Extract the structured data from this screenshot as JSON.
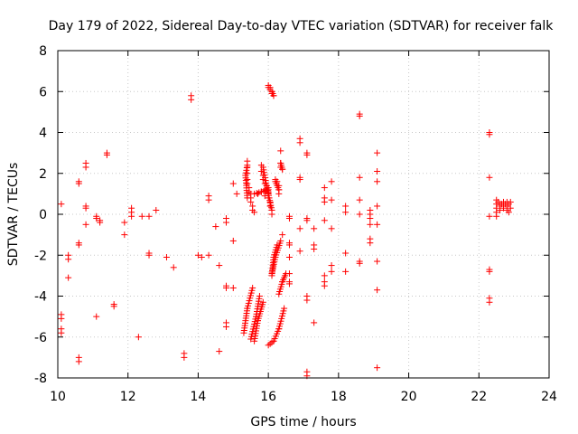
{
  "chart_data": {
    "type": "scatter",
    "title": "Day 179 of 2022, Sidereal Day-to-day VTEC variation (SDTVAR) for receiver falk",
    "xlabel": "GPS time / hours",
    "ylabel": "SDTVAR / TECUs",
    "xlim": [
      10,
      24
    ],
    "ylim": [
      -8,
      8
    ],
    "xticks": [
      10,
      12,
      14,
      16,
      18,
      20,
      22,
      24
    ],
    "yticks": [
      -8,
      -6,
      -4,
      -2,
      0,
      2,
      4,
      6,
      8
    ],
    "marker": "plus",
    "color": "#ff0000",
    "grid": true,
    "series": [
      {
        "name": "SDTVAR",
        "points": [
          [
            10.1,
            0.5
          ],
          [
            10.1,
            -4.9
          ],
          [
            10.1,
            -5.1
          ],
          [
            10.1,
            -5.6
          ],
          [
            10.1,
            -5.8
          ],
          [
            10.3,
            -2.0
          ],
          [
            10.3,
            -2.2
          ],
          [
            10.3,
            -3.1
          ],
          [
            10.6,
            1.6
          ],
          [
            10.6,
            1.5
          ],
          [
            10.6,
            -1.4
          ],
          [
            10.6,
            -1.5
          ],
          [
            10.6,
            -7.0
          ],
          [
            10.6,
            -7.2
          ],
          [
            10.8,
            2.5
          ],
          [
            10.8,
            2.3
          ],
          [
            10.8,
            0.4
          ],
          [
            10.8,
            0.3
          ],
          [
            10.8,
            -0.5
          ],
          [
            11.1,
            -0.1
          ],
          [
            11.1,
            -0.2
          ],
          [
            11.2,
            -0.3
          ],
          [
            11.2,
            -0.4
          ],
          [
            11.1,
            -5.0
          ],
          [
            11.4,
            3.0
          ],
          [
            11.4,
            2.9
          ],
          [
            11.6,
            -4.4
          ],
          [
            11.6,
            -4.5
          ],
          [
            11.9,
            -0.4
          ],
          [
            11.9,
            -1.0
          ],
          [
            12.1,
            0.3
          ],
          [
            12.1,
            0.1
          ],
          [
            12.1,
            -0.1
          ],
          [
            12.3,
            -6.0
          ],
          [
            12.4,
            -0.1
          ],
          [
            12.6,
            -0.1
          ],
          [
            12.6,
            -1.9
          ],
          [
            12.6,
            -2.0
          ],
          [
            12.8,
            0.2
          ],
          [
            13.1,
            -2.1
          ],
          [
            13.3,
            -2.6
          ],
          [
            13.6,
            -6.8
          ],
          [
            13.6,
            -7.0
          ],
          [
            13.8,
            5.8
          ],
          [
            13.8,
            5.6
          ],
          [
            14.0,
            -2.0
          ],
          [
            14.1,
            -2.1
          ],
          [
            14.3,
            0.9
          ],
          [
            14.3,
            0.7
          ],
          [
            14.3,
            -2.0
          ],
          [
            14.5,
            -0.6
          ],
          [
            14.6,
            -2.5
          ],
          [
            14.6,
            -6.7
          ],
          [
            14.8,
            -0.2
          ],
          [
            14.8,
            -0.4
          ],
          [
            14.8,
            -3.5
          ],
          [
            14.8,
            -3.6
          ],
          [
            14.8,
            -5.3
          ],
          [
            14.8,
            -5.5
          ],
          [
            15.0,
            1.5
          ],
          [
            15.0,
            -1.3
          ],
          [
            15.0,
            -3.6
          ],
          [
            15.1,
            1.0
          ],
          [
            15.4,
            2.6
          ],
          [
            15.4,
            2.3
          ],
          [
            15.4,
            2.0
          ],
          [
            15.4,
            1.7
          ],
          [
            15.4,
            1.5
          ],
          [
            15.45,
            1.3
          ],
          [
            15.45,
            1.1
          ],
          [
            15.5,
            1.0
          ],
          [
            15.5,
            0.8
          ],
          [
            15.5,
            0.6
          ],
          [
            15.55,
            0.4
          ],
          [
            15.55,
            0.2
          ],
          [
            15.6,
            0.1
          ],
          [
            15.7,
            1.0
          ],
          [
            15.8,
            1.1
          ],
          [
            15.9,
            1.2
          ],
          [
            16.0,
            1.3
          ],
          [
            16.0,
            1.1
          ],
          [
            15.9,
            0.9
          ],
          [
            15.8,
            2.4
          ],
          [
            15.8,
            2.1
          ],
          [
            15.85,
            1.9
          ],
          [
            15.85,
            1.7
          ],
          [
            15.9,
            1.5
          ],
          [
            15.95,
            1.2
          ],
          [
            16.0,
            1.0
          ],
          [
            16.0,
            0.8
          ],
          [
            16.05,
            0.6
          ],
          [
            16.05,
            0.4
          ],
          [
            16.1,
            0.2
          ],
          [
            16.1,
            0.0
          ],
          [
            16.0,
            6.3
          ],
          [
            16.05,
            6.2
          ],
          [
            16.05,
            6.1
          ],
          [
            16.1,
            6.0
          ],
          [
            16.1,
            5.9
          ],
          [
            16.15,
            5.8
          ],
          [
            16.2,
            1.7
          ],
          [
            16.25,
            1.6
          ],
          [
            16.3,
            1.4
          ],
          [
            16.3,
            1.2
          ],
          [
            16.35,
            3.1
          ],
          [
            16.35,
            2.5
          ],
          [
            16.35,
            2.3
          ],
          [
            16.4,
            2.2
          ],
          [
            16.3,
            1.0
          ],
          [
            16.4,
            -1.0
          ],
          [
            16.6,
            -0.1
          ],
          [
            16.6,
            -0.2
          ],
          [
            16.6,
            -1.4
          ],
          [
            16.6,
            -1.5
          ],
          [
            16.6,
            -2.1
          ],
          [
            16.6,
            -2.9
          ],
          [
            16.6,
            -3.3
          ],
          [
            16.6,
            -3.4
          ],
          [
            16.9,
            3.7
          ],
          [
            16.9,
            3.5
          ],
          [
            16.9,
            1.8
          ],
          [
            16.9,
            1.7
          ],
          [
            16.9,
            -0.7
          ],
          [
            16.9,
            -1.8
          ],
          [
            17.1,
            3.0
          ],
          [
            17.1,
            2.9
          ],
          [
            17.1,
            -0.2
          ],
          [
            17.1,
            -0.3
          ],
          [
            17.1,
            -4.0
          ],
          [
            17.1,
            -4.2
          ],
          [
            17.1,
            -7.7
          ],
          [
            17.1,
            -7.9
          ],
          [
            17.3,
            -0.7
          ],
          [
            17.3,
            -1.5
          ],
          [
            17.3,
            -1.7
          ],
          [
            17.3,
            -5.3
          ],
          [
            17.6,
            1.3
          ],
          [
            17.6,
            0.8
          ],
          [
            17.6,
            0.6
          ],
          [
            17.6,
            -0.3
          ],
          [
            17.6,
            -3.0
          ],
          [
            17.6,
            -3.3
          ],
          [
            17.6,
            -3.5
          ],
          [
            17.8,
            1.6
          ],
          [
            17.8,
            0.7
          ],
          [
            17.8,
            -0.7
          ],
          [
            17.8,
            -2.5
          ],
          [
            17.8,
            -2.8
          ],
          [
            18.2,
            0.4
          ],
          [
            18.2,
            0.1
          ],
          [
            18.2,
            -1.9
          ],
          [
            18.2,
            -2.8
          ],
          [
            18.6,
            4.9
          ],
          [
            18.6,
            4.8
          ],
          [
            18.6,
            1.8
          ],
          [
            18.6,
            0.7
          ],
          [
            18.6,
            0.0
          ],
          [
            18.6,
            -2.3
          ],
          [
            18.6,
            -2.4
          ],
          [
            18.9,
            0.2
          ],
          [
            18.9,
            0.0
          ],
          [
            18.9,
            -0.2
          ],
          [
            18.9,
            -0.5
          ],
          [
            18.9,
            -1.2
          ],
          [
            18.9,
            -1.4
          ],
          [
            19.1,
            3.0
          ],
          [
            19.1,
            2.1
          ],
          [
            19.1,
            1.6
          ],
          [
            19.1,
            0.4
          ],
          [
            19.1,
            -0.5
          ],
          [
            19.1,
            -2.3
          ],
          [
            19.1,
            -3.7
          ],
          [
            19.1,
            -7.5
          ],
          [
            22.3,
            4.0
          ],
          [
            22.3,
            3.9
          ],
          [
            22.3,
            1.8
          ],
          [
            22.3,
            -0.1
          ],
          [
            22.3,
            -2.7
          ],
          [
            22.3,
            -2.8
          ],
          [
            22.3,
            -4.1
          ],
          [
            22.3,
            -4.3
          ],
          [
            22.5,
            0.7
          ],
          [
            22.5,
            0.5
          ],
          [
            22.5,
            0.3
          ],
          [
            22.5,
            0.1
          ],
          [
            22.5,
            -0.1
          ],
          [
            22.55,
            0.6
          ],
          [
            22.6,
            0.5
          ],
          [
            22.6,
            0.4
          ],
          [
            22.6,
            0.2
          ],
          [
            22.65,
            0.5
          ],
          [
            22.7,
            0.6
          ],
          [
            22.7,
            0.4
          ],
          [
            22.7,
            0.3
          ],
          [
            22.75,
            0.5
          ],
          [
            22.8,
            0.6
          ],
          [
            22.8,
            0.4
          ],
          [
            22.8,
            0.2
          ],
          [
            22.85,
            0.5
          ],
          [
            22.85,
            0.1
          ],
          [
            22.9,
            0.6
          ],
          [
            22.9,
            0.3
          ]
        ],
        "trails": [
          [
            [
              15.3,
              -5.8
            ],
            [
              15.4,
              -4.6
            ],
            [
              15.55,
              -3.6
            ]
          ],
          [
            [
              15.5,
              -6.1
            ],
            [
              15.65,
              -5.0
            ],
            [
              15.75,
              -4.0
            ]
          ],
          [
            [
              15.6,
              -6.2
            ],
            [
              15.7,
              -5.2
            ],
            [
              15.85,
              -4.3
            ]
          ],
          [
            [
              16.0,
              -6.4
            ],
            [
              16.15,
              -6.2
            ],
            [
              16.3,
              -5.6
            ],
            [
              16.45,
              -4.6
            ]
          ],
          [
            [
              16.1,
              -3.0
            ],
            [
              16.15,
              -2.1
            ],
            [
              16.25,
              -1.5
            ]
          ],
          [
            [
              16.1,
              -2.9
            ],
            [
              16.2,
              -2.1
            ],
            [
              16.35,
              -1.3
            ]
          ],
          [
            [
              16.3,
              -3.9
            ],
            [
              16.4,
              -3.3
            ],
            [
              16.5,
              -2.9
            ]
          ],
          [
            [
              15.4,
              0.8
            ],
            [
              15.35,
              1.9
            ],
            [
              15.4,
              2.4
            ]
          ],
          [
            [
              15.6,
              1.0
            ],
            [
              15.8,
              1.1
            ],
            [
              16.0,
              1.2
            ]
          ],
          [
            [
              15.85,
              2.3
            ],
            [
              15.95,
              1.4
            ],
            [
              16.1,
              0.2
            ]
          ],
          [
            [
              16.0,
              6.2
            ],
            [
              16.1,
              6.0
            ],
            [
              16.15,
              5.8
            ]
          ],
          [
            [
              16.2,
              1.6
            ],
            [
              16.3,
              1.2
            ]
          ],
          [
            [
              16.35,
              2.5
            ],
            [
              16.4,
              2.2
            ]
          ]
        ]
      }
    ]
  }
}
